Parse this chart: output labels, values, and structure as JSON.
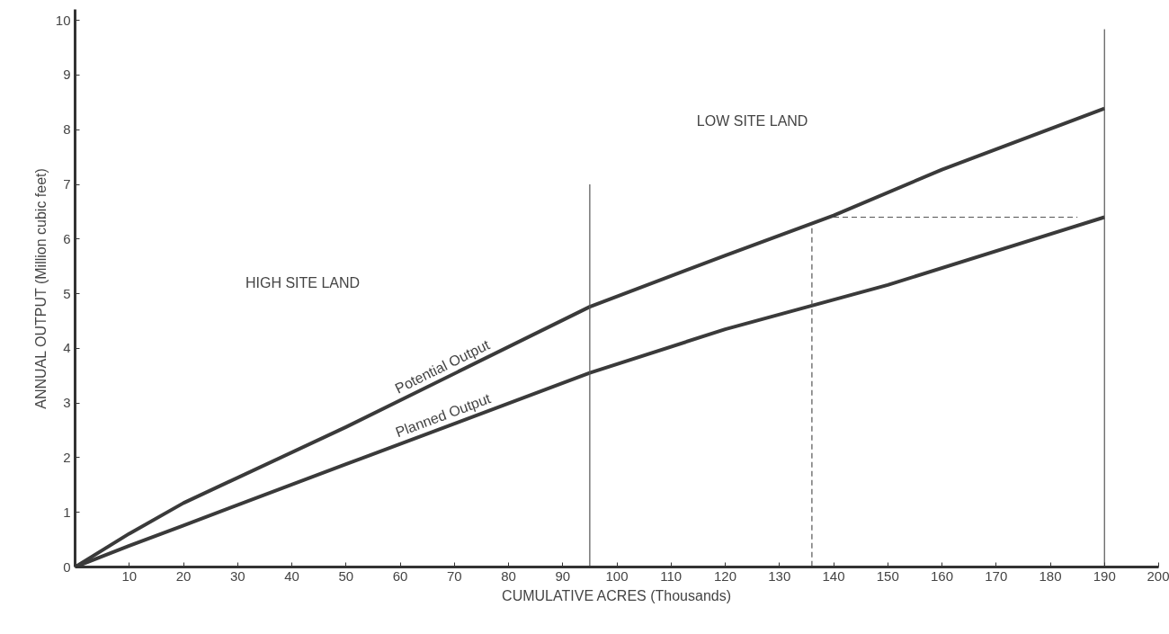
{
  "chart_data": {
    "type": "line",
    "xlabel": "CUMULATIVE ACRES (Thousands)",
    "ylabel": "ANNUAL OUTPUT (Million cubic feet)",
    "xlim": [
      0,
      200
    ],
    "ylim": [
      0,
      10.2
    ],
    "xticks": [
      10,
      20,
      30,
      40,
      50,
      60,
      70,
      80,
      90,
      100,
      110,
      120,
      130,
      140,
      150,
      160,
      170,
      180,
      190,
      200
    ],
    "yticks": [
      0,
      1,
      2,
      3,
      4,
      5,
      6,
      7,
      8,
      9,
      10
    ],
    "grid": false,
    "series": [
      {
        "name": "Potential Output",
        "color": "#3a3a3a",
        "x": [
          0,
          10,
          20,
          50,
          95,
          120,
          140,
          160,
          190
        ],
        "values": [
          0,
          0.61,
          1.17,
          2.56,
          4.76,
          5.7,
          6.43,
          7.27,
          8.39
        ]
      },
      {
        "name": "Planned Output",
        "color": "#3a3a3a",
        "x": [
          0,
          10,
          20,
          50,
          95,
          120,
          150,
          190
        ],
        "values": [
          0,
          0.39,
          0.76,
          1.88,
          3.55,
          4.35,
          5.16,
          6.4
        ]
      },
      {
        "color": "#555555",
        "x": [
          95,
          95
        ],
        "values": [
          0,
          7
        ]
      },
      {
        "color": "#555555",
        "x": [
          190,
          190
        ],
        "values": [
          0,
          9.84
        ]
      },
      {
        "color": "#555555",
        "line_style": "dashed",
        "x": [
          140,
          185
        ],
        "values": [
          6.4,
          6.4
        ]
      },
      {
        "color": "#555555",
        "line_style": "dashed",
        "x": [
          136,
          136
        ],
        "values": [
          6.2,
          0
        ]
      }
    ],
    "annotations": [
      "HIGH SITE LAND",
      "LOW SITE LAND"
    ]
  }
}
